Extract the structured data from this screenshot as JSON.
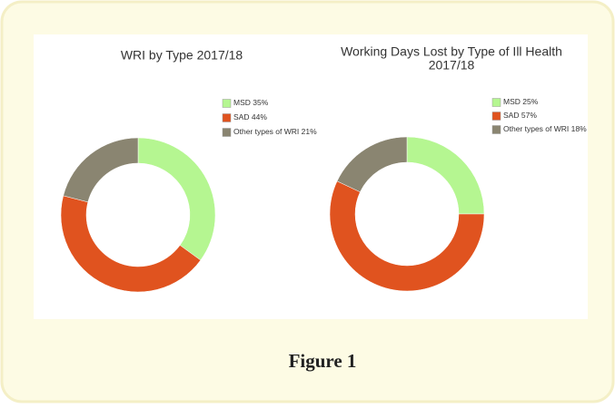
{
  "caption": "Figure 1",
  "chart_data": [
    {
      "type": "donut",
      "title": [
        "WRI by Type 2017/18"
      ],
      "categories": [
        "MSD",
        "SAD",
        "Other types of WRI"
      ],
      "values": [
        35,
        44,
        21
      ],
      "value_labels": [
        "35%",
        "44%",
        "21%"
      ],
      "colors": [
        "#b5f691",
        "#e0531f",
        "#8a8571"
      ]
    },
    {
      "type": "donut",
      "title": [
        "Working Days Lost by Type of Ill Health",
        "2017/18"
      ],
      "categories": [
        "MSD",
        "SAD",
        "Other types of WRI"
      ],
      "values": [
        25,
        57,
        18
      ],
      "value_labels": [
        "25%",
        "57%",
        "18%"
      ],
      "colors": [
        "#b5f691",
        "#e0531f",
        "#8a8571"
      ]
    }
  ]
}
